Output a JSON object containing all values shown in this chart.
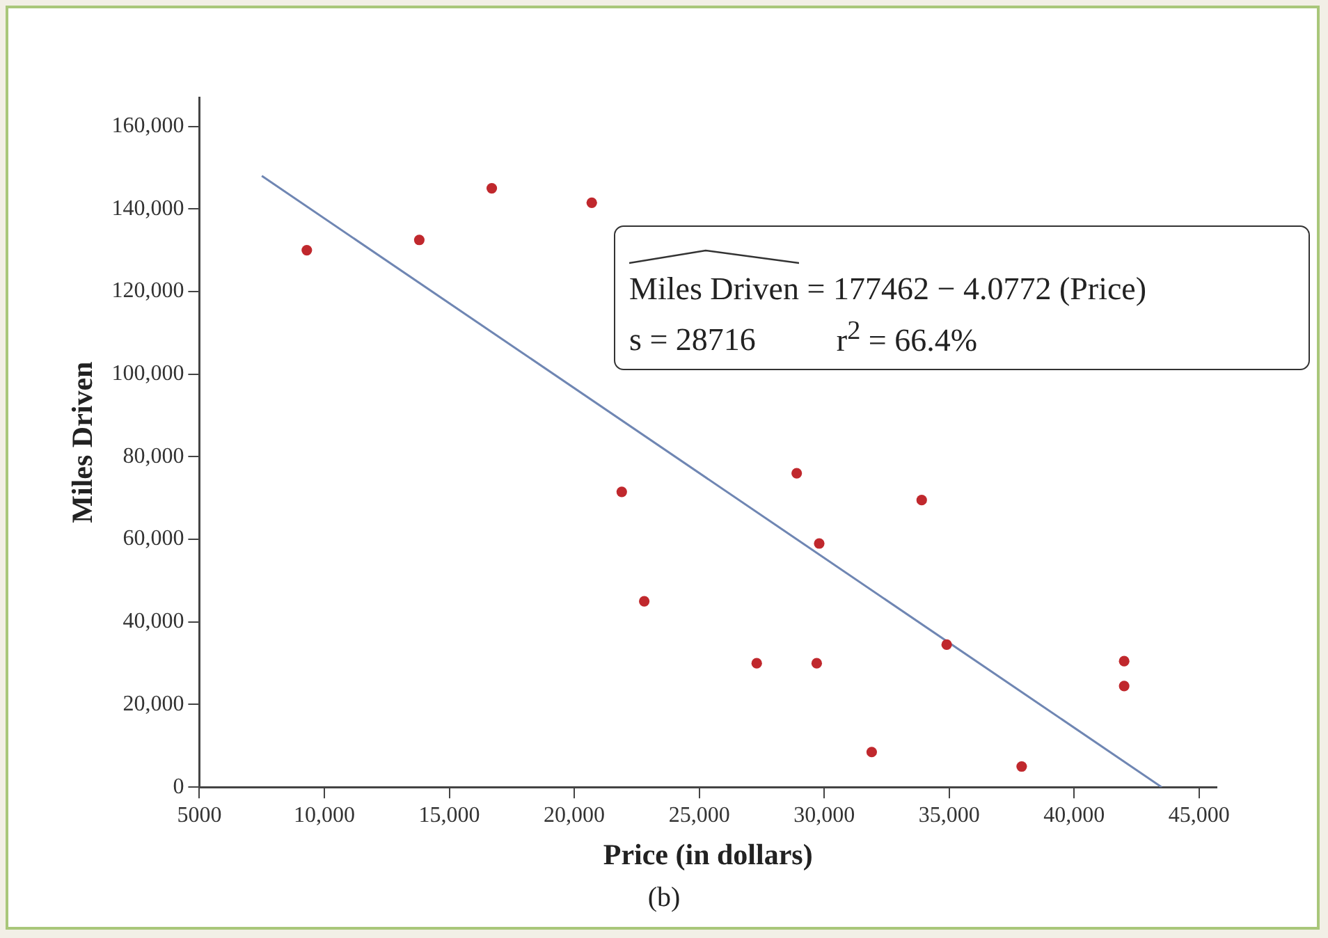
{
  "chart_data": {
    "type": "scatter",
    "xlabel": "Price (in dollars)",
    "ylabel": "Miles Driven",
    "xlim": [
      5000,
      45700
    ],
    "ylim": [
      0,
      167000
    ],
    "xticks": [
      {
        "value": 5000,
        "label": "5000"
      },
      {
        "value": 10000,
        "label": "10,000"
      },
      {
        "value": 15000,
        "label": "15,000"
      },
      {
        "value": 20000,
        "label": "20,000"
      },
      {
        "value": 25000,
        "label": "25,000"
      },
      {
        "value": 30000,
        "label": "30,000"
      },
      {
        "value": 35000,
        "label": "35,000"
      },
      {
        "value": 40000,
        "label": "40,000"
      },
      {
        "value": 45000,
        "label": "45,000"
      }
    ],
    "yticks": [
      {
        "value": 0,
        "label": "0"
      },
      {
        "value": 20000,
        "label": "20,000"
      },
      {
        "value": 40000,
        "label": "40,000"
      },
      {
        "value": 60000,
        "label": "60,000"
      },
      {
        "value": 80000,
        "label": "80,000"
      },
      {
        "value": 100000,
        "label": "100,000"
      },
      {
        "value": 120000,
        "label": "120,000"
      },
      {
        "value": 140000,
        "label": "140,000"
      },
      {
        "value": 160000,
        "label": "160,000"
      }
    ],
    "grid": false,
    "legend": false,
    "series": [
      {
        "marker": "circle",
        "color": "#c0282d",
        "x": [
          9300,
          13800,
          16700,
          20700,
          21900,
          22800,
          27300,
          28900,
          29700,
          29800,
          31900,
          33900,
          34900,
          37900,
          42000,
          42000
        ],
        "values": [
          130000,
          132500,
          145000,
          141500,
          71500,
          45000,
          30000,
          76000,
          30000,
          59000,
          8500,
          69500,
          34500,
          5000,
          30500,
          24500
        ]
      },
      {
        "type": "line",
        "marker": "none",
        "color": "#6f86b3",
        "line_style": "solid",
        "x": [
          7500,
          43500
        ],
        "values": [
          148000,
          0
        ]
      }
    ],
    "annotations": [
      "Miles Driven = 177462 − 4.0772 (Price)",
      "s = 28716",
      "r$^{2}$ = 66.4%",
      "(b)"
    ]
  }
}
